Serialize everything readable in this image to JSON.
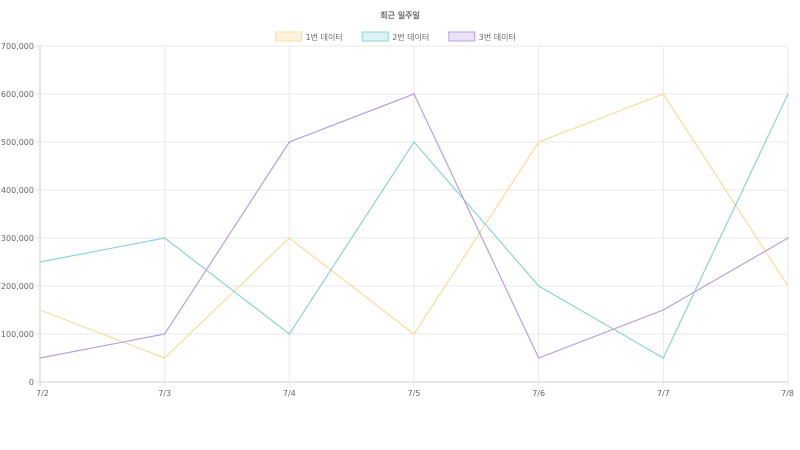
{
  "chart_data": {
    "type": "line",
    "title": "최근 일주일",
    "categories": [
      "7/2",
      "7/3",
      "7/4",
      "7/5",
      "7/6",
      "7/7",
      "7/8"
    ],
    "ylim": [
      0,
      700000
    ],
    "yticks": [
      0,
      100000,
      200000,
      300000,
      400000,
      500000,
      600000,
      700000
    ],
    "ytick_labels": [
      "0",
      "100,000",
      "200,000",
      "300,000",
      "400,000",
      "500,000",
      "600,000",
      "700,000"
    ],
    "grid": true,
    "legend_position": "top-center",
    "series": [
      {
        "name": "1번 데이터",
        "stroke": "#f8dca0",
        "fill": "#fdf3dc",
        "values": [
          150000,
          50000,
          300000,
          100000,
          500000,
          600000,
          200000
        ]
      },
      {
        "name": "2번 데이터",
        "stroke": "#8fd3d3",
        "fill": "#dcf3f3",
        "values": [
          250000,
          300000,
          100000,
          500000,
          200000,
          50000,
          600000
        ]
      },
      {
        "name": "3번 데이터",
        "stroke": "#b8a0dc",
        "fill": "#ece3f7",
        "values": [
          50000,
          100000,
          500000,
          600000,
          50000,
          150000,
          300000
        ]
      }
    ]
  }
}
